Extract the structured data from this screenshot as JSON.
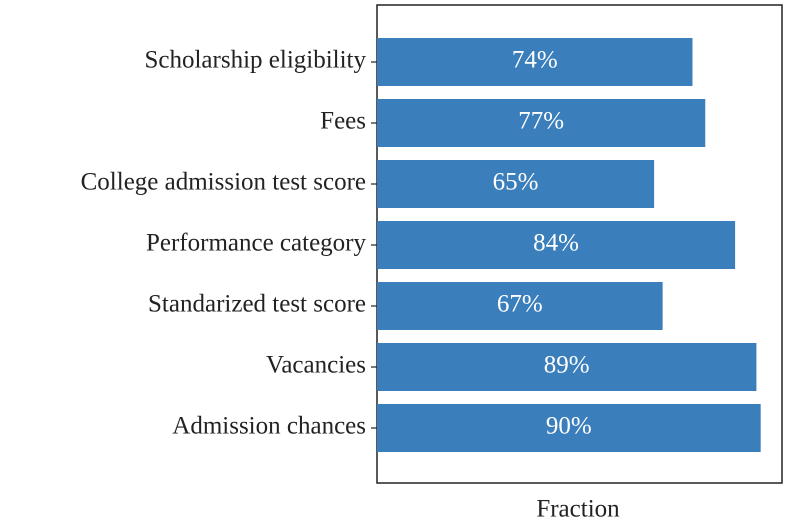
{
  "chart_data": {
    "type": "bar",
    "orientation": "horizontal",
    "categories": [
      "Scholarship eligibility",
      "Fees",
      "College admission test score",
      "Performance category",
      "Standarized test score",
      "Vacancies",
      "Admission chances"
    ],
    "values": [
      74,
      77,
      65,
      84,
      67,
      89,
      90
    ],
    "value_labels": [
      "74%",
      "77%",
      "65%",
      "84%",
      "67%",
      "89%",
      "90%"
    ],
    "color": "#3a7ebb",
    "xlabel": "Fraction",
    "xlim": [
      0,
      95
    ]
  }
}
